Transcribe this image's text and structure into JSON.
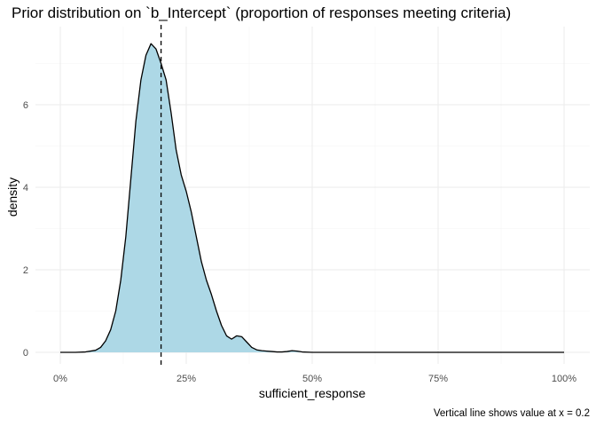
{
  "chart_data": {
    "type": "area",
    "title": "Prior distribution on `b_Intercept` (proportion of responses meeting criteria)",
    "xlabel": "sufficient_response",
    "ylabel": "density",
    "caption": "Vertical line shows value at x = 0.2",
    "xlim": [
      0,
      1
    ],
    "ylim": [
      0,
      7.5
    ],
    "x_ticks": [
      0,
      0.25,
      0.5,
      0.75,
      1.0
    ],
    "x_tick_labels": [
      "0%",
      "25%",
      "50%",
      "75%",
      "100%"
    ],
    "y_ticks": [
      0,
      2,
      4,
      6
    ],
    "y_tick_labels": [
      "0",
      "2",
      "4",
      "6"
    ],
    "grid": true,
    "reference_line_x": 0.2,
    "fill_color": "#add8e6",
    "line_color": "#000000",
    "density_curve": {
      "x": [
        0.0,
        0.03,
        0.05,
        0.07,
        0.08,
        0.09,
        0.1,
        0.11,
        0.12,
        0.13,
        0.14,
        0.15,
        0.16,
        0.17,
        0.18,
        0.19,
        0.2,
        0.21,
        0.22,
        0.23,
        0.24,
        0.25,
        0.26,
        0.27,
        0.28,
        0.29,
        0.3,
        0.31,
        0.32,
        0.33,
        0.34,
        0.35,
        0.36,
        0.37,
        0.38,
        0.39,
        0.4,
        0.41,
        0.42,
        0.43,
        0.44,
        0.45,
        0.46,
        0.47,
        0.48,
        0.5,
        0.55,
        0.6,
        0.7,
        0.8,
        0.9,
        1.0
      ],
      "y": [
        0,
        0,
        0.01,
        0.05,
        0.12,
        0.28,
        0.55,
        1.0,
        1.75,
        2.8,
        4.2,
        5.6,
        6.6,
        7.2,
        7.48,
        7.35,
        7.0,
        6.6,
        5.8,
        4.9,
        4.3,
        3.9,
        3.4,
        2.8,
        2.2,
        1.75,
        1.4,
        1.0,
        0.65,
        0.4,
        0.32,
        0.4,
        0.38,
        0.25,
        0.12,
        0.06,
        0.04,
        0.03,
        0.02,
        0.01,
        0.01,
        0.02,
        0.04,
        0.03,
        0.01,
        0,
        0,
        0,
        0,
        0,
        0,
        0
      ]
    }
  }
}
